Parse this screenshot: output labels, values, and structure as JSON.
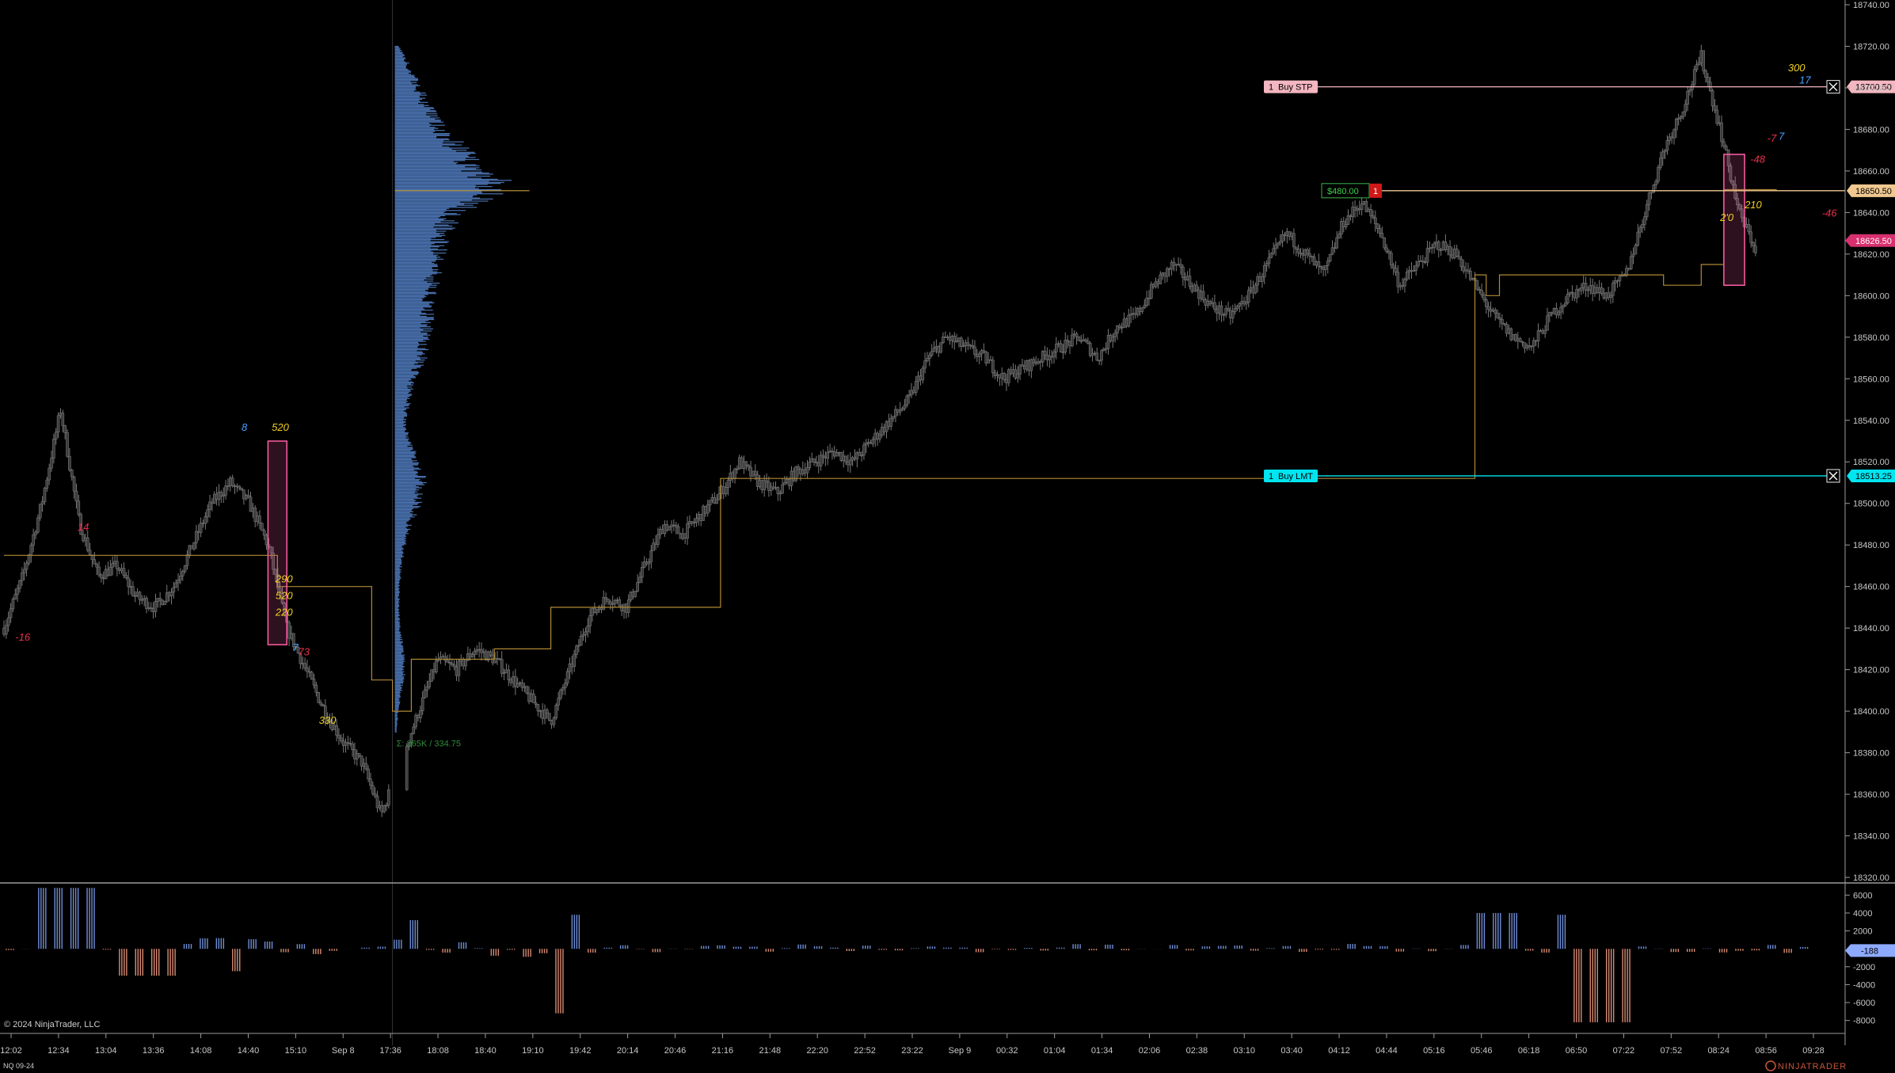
{
  "chart_data": {
    "type": "candlestick",
    "instrument": "NQ 09-24",
    "copyright": "© 2024 NinjaTrader, LLC",
    "logo_text": "NINJATRADER",
    "colors": {
      "background": "#000000",
      "candle": "#7a7a7a",
      "profile": "#4a72b0",
      "poc": "#c8a040",
      "step_line": "#b08a35",
      "up_delta": "#6f8ed8",
      "down_delta": "#d98b74",
      "highlight_box": "#ff5fa6",
      "buy_stp": "#f4b6c0",
      "buy_lmt": "#00e5f0",
      "position": "#f0c890",
      "last_price": "#d8306f"
    },
    "price_axis": {
      "ylim": [
        18320,
        18740
      ],
      "ticks": [
        "18740.00",
        "18720.00",
        "18700.00",
        "18680.00",
        "18660.00",
        "18640.00",
        "18620.00",
        "18600.00",
        "18580.00",
        "18560.00",
        "18540.00",
        "18520.00",
        "18500.00",
        "18480.00",
        "18460.00",
        "18440.00",
        "18420.00",
        "18400.00",
        "18380.00",
        "18360.00",
        "18340.00",
        "18320.00"
      ]
    },
    "delta_axis": {
      "ylim": [
        -9000,
        7000
      ],
      "ticks": [
        "6000",
        "4000",
        "2000",
        "-2000",
        "-4000",
        "-6000",
        "-8000"
      ],
      "current": "-188"
    },
    "time_axis": [
      "12:02",
      "12:34",
      "13:04",
      "13:36",
      "14:08",
      "14:40",
      "15:10",
      "Sep 8",
      "17:36",
      "18:08",
      "18:40",
      "19:10",
      "19:42",
      "20:14",
      "20:46",
      "21:16",
      "21:48",
      "22:20",
      "22:52",
      "23:22",
      "Sep 9",
      "00:32",
      "01:04",
      "01:34",
      "02:06",
      "02:38",
      "03:10",
      "03:40",
      "04:12",
      "04:44",
      "05:16",
      "05:46",
      "06:18",
      "06:50",
      "07:22",
      "07:52",
      "08:24",
      "08:56",
      "09:28"
    ],
    "price_path": [
      [
        0,
        18440
      ],
      [
        1,
        18465
      ],
      [
        2,
        18500
      ],
      [
        3,
        18545
      ],
      [
        4,
        18490
      ],
      [
        5,
        18465
      ],
      [
        6,
        18470
      ],
      [
        7,
        18455
      ],
      [
        8,
        18450
      ],
      [
        9,
        18460
      ],
      [
        10,
        18480
      ],
      [
        11,
        18500
      ],
      [
        12,
        18510
      ],
      [
        13,
        18500
      ],
      [
        14,
        18480
      ],
      [
        15,
        18440
      ],
      [
        16,
        18420
      ],
      [
        17,
        18400
      ],
      [
        18,
        18385
      ],
      [
        19,
        18375
      ],
      [
        20,
        18350
      ],
      [
        22,
        18400
      ],
      [
        23,
        18425
      ],
      [
        24,
        18420
      ],
      [
        25,
        18430
      ],
      [
        26,
        18425
      ],
      [
        27,
        18415
      ],
      [
        28,
        18405
      ],
      [
        29,
        18395
      ],
      [
        30,
        18420
      ],
      [
        31,
        18445
      ],
      [
        32,
        18455
      ],
      [
        33,
        18450
      ],
      [
        34,
        18470
      ],
      [
        35,
        18490
      ],
      [
        36,
        18485
      ],
      [
        37,
        18495
      ],
      [
        38,
        18505
      ],
      [
        39,
        18520
      ],
      [
        40,
        18510
      ],
      [
        41,
        18505
      ],
      [
        42,
        18515
      ],
      [
        43,
        18520
      ],
      [
        44,
        18525
      ],
      [
        45,
        18520
      ],
      [
        46,
        18530
      ],
      [
        47,
        18540
      ],
      [
        48,
        18550
      ],
      [
        49,
        18570
      ],
      [
        50,
        18580
      ],
      [
        51,
        18575
      ],
      [
        52,
        18570
      ],
      [
        53,
        18560
      ],
      [
        54,
        18565
      ],
      [
        55,
        18570
      ],
      [
        56,
        18575
      ],
      [
        57,
        18580
      ],
      [
        58,
        18570
      ],
      [
        59,
        18585
      ],
      [
        60,
        18590
      ],
      [
        61,
        18605
      ],
      [
        62,
        18615
      ],
      [
        63,
        18605
      ],
      [
        64,
        18595
      ],
      [
        65,
        18590
      ],
      [
        66,
        18600
      ],
      [
        67,
        18615
      ],
      [
        68,
        18630
      ],
      [
        69,
        18620
      ],
      [
        70,
        18610
      ],
      [
        71,
        18635
      ],
      [
        72,
        18645
      ],
      [
        73,
        18630
      ],
      [
        74,
        18605
      ],
      [
        75,
        18615
      ],
      [
        76,
        18625
      ],
      [
        77,
        18620
      ],
      [
        78,
        18605
      ],
      [
        79,
        18590
      ],
      [
        80,
        18580
      ],
      [
        81,
        18575
      ],
      [
        82,
        18590
      ],
      [
        83,
        18600
      ],
      [
        84,
        18605
      ],
      [
        85,
        18600
      ],
      [
        86,
        18610
      ],
      [
        87,
        18640
      ],
      [
        88,
        18670
      ],
      [
        89,
        18690
      ],
      [
        90,
        18715
      ],
      [
        91,
        18680
      ],
      [
        92,
        18640
      ],
      [
        93,
        18620
      ]
    ],
    "volume_profile": {
      "session": "Sep 8",
      "poc_price": 18650.5,
      "summary": "Σ: 265K / 334.75",
      "shape": [
        [
          18720,
          6
        ],
        [
          18710,
          18
        ],
        [
          18700,
          30
        ],
        [
          18690,
          42
        ],
        [
          18680,
          60
        ],
        [
          18670,
          82
        ],
        [
          18660,
          110
        ],
        [
          18655,
          125
        ],
        [
          18650,
          130
        ],
        [
          18645,
          98
        ],
        [
          18640,
          75
        ],
        [
          18630,
          60
        ],
        [
          18620,
          55
        ],
        [
          18610,
          50
        ],
        [
          18600,
          45
        ],
        [
          18590,
          42
        ],
        [
          18580,
          40
        ],
        [
          18570,
          35
        ],
        [
          18560,
          22
        ],
        [
          18550,
          18
        ],
        [
          18540,
          12
        ],
        [
          18530,
          18
        ],
        [
          18520,
          28
        ],
        [
          18510,
          35
        ],
        [
          18500,
          30
        ],
        [
          18490,
          18
        ],
        [
          18480,
          12
        ],
        [
          18470,
          8
        ],
        [
          18460,
          6
        ],
        [
          18450,
          5
        ],
        [
          18440,
          6
        ],
        [
          18430,
          10
        ],
        [
          18420,
          12
        ],
        [
          18410,
          8
        ],
        [
          18400,
          4
        ],
        [
          18390,
          2
        ]
      ]
    },
    "step_line": [
      [
        0,
        18475
      ],
      [
        14.5,
        18475
      ],
      [
        14.5,
        18460
      ],
      [
        19.5,
        18460
      ],
      [
        19.5,
        18415
      ],
      [
        20.6,
        18415
      ],
      [
        20.6,
        18400
      ],
      [
        21.6,
        18400
      ],
      [
        21.6,
        18425
      ],
      [
        26,
        18425
      ],
      [
        26,
        18430
      ],
      [
        29,
        18430
      ],
      [
        29,
        18450
      ],
      [
        38,
        18450
      ],
      [
        38,
        18512
      ],
      [
        78,
        18512
      ],
      [
        78,
        18610
      ],
      [
        78.6,
        18610
      ],
      [
        78.6,
        18600
      ],
      [
        79.3,
        18600
      ],
      [
        79.3,
        18610
      ],
      [
        88,
        18610
      ],
      [
        88,
        18605
      ],
      [
        90,
        18605
      ],
      [
        90,
        18615
      ],
      [
        91.2,
        18615
      ],
      [
        91.2,
        18651
      ],
      [
        94,
        18651
      ]
    ],
    "signal_boxes": [
      {
        "x0": 14.0,
        "x1": 15.0,
        "top": 18530,
        "bottom": 18432
      },
      {
        "x0": 91.2,
        "x1": 92.3,
        "top": 18668,
        "bottom": 18605
      }
    ],
    "annotations": [
      {
        "text": "-16",
        "x": 0.6,
        "y": 18434,
        "color": "#e8304a"
      },
      {
        "text": "14",
        "x": 3.9,
        "y": 18487,
        "color": "#e8304a"
      },
      {
        "text": "8",
        "x": 12.6,
        "y": 18535,
        "color": "#4aa0ff"
      },
      {
        "text": "520",
        "x": 14.2,
        "y": 18535,
        "color": "#f0d020"
      },
      {
        "text": "290",
        "x": 14.4,
        "y": 18462,
        "color": "#f0d020"
      },
      {
        "text": "520",
        "x": 14.4,
        "y": 18454,
        "color": "#f0d020"
      },
      {
        "text": "220",
        "x": 14.4,
        "y": 18446,
        "color": "#f0d020"
      },
      {
        "text": "7",
        "x": 15.3,
        "y": 18429,
        "color": "#4aa0ff"
      },
      {
        "text": "73",
        "x": 15.6,
        "y": 18427,
        "color": "#e8304a"
      },
      {
        "text": "330",
        "x": 16.7,
        "y": 18394,
        "color": "#f0d020"
      },
      {
        "text": "300",
        "x": 94.6,
        "y": 18708,
        "color": "#f0d020"
      },
      {
        "text": "17",
        "x": 95.2,
        "y": 18702,
        "color": "#4aa0ff"
      },
      {
        "text": "7",
        "x": 94.1,
        "y": 18675,
        "color": "#4aa0ff"
      },
      {
        "text": "-7",
        "x": 93.5,
        "y": 18674,
        "color": "#e8304a"
      },
      {
        "text": "-48",
        "x": 92.6,
        "y": 18664,
        "color": "#e8304a"
      },
      {
        "text": "210",
        "x": 92.3,
        "y": 18642,
        "color": "#f0d020"
      },
      {
        "text": "2'0",
        "x": 91.0,
        "y": 18636,
        "color": "#f0d020"
      },
      {
        "text": "-46",
        "x": 96.4,
        "y": 18638,
        "color": "#e8304a"
      }
    ],
    "orders": [
      {
        "qty": "1",
        "label": "Buy STP",
        "price": 18700.5,
        "price_label": "18700.50"
      },
      {
        "qty": "1",
        "label": "Buy LMT",
        "price": 18513.25,
        "price_label": "18513.25"
      }
    ],
    "position": {
      "pnl": "$480.00",
      "qty": "1",
      "price": 18650.5,
      "price_label": "18650.50"
    },
    "last_price": {
      "price": 18626.5,
      "price_label": "18626.50"
    }
  }
}
